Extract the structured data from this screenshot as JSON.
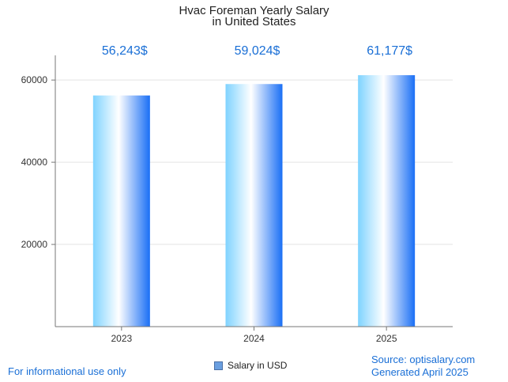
{
  "chart_data": {
    "type": "bar",
    "title_line1": "Hvac Foreman Yearly Salary",
    "title_line2": "in United States",
    "categories": [
      "2023",
      "2024",
      "2025"
    ],
    "series": [
      {
        "name": "Salary in USD",
        "values": [
          56243,
          59024,
          61177
        ]
      }
    ],
    "data_labels": [
      "56,243$",
      "59,024$",
      "61,177$"
    ],
    "yticks": [
      "20000",
      "40000",
      "60000"
    ],
    "ylim": [
      0,
      66000
    ],
    "grid": true,
    "legend_position": "bottom-center",
    "colors": {
      "bar_left": "#7fd3ff",
      "bar_mid": "#ffffff",
      "bar_right": "#1a6ff5",
      "label": "#1a6fd6"
    }
  },
  "footer": {
    "disclaimer": "For informational use only",
    "source": "Source: optisalary.com",
    "generated": "Generated April 2025"
  }
}
